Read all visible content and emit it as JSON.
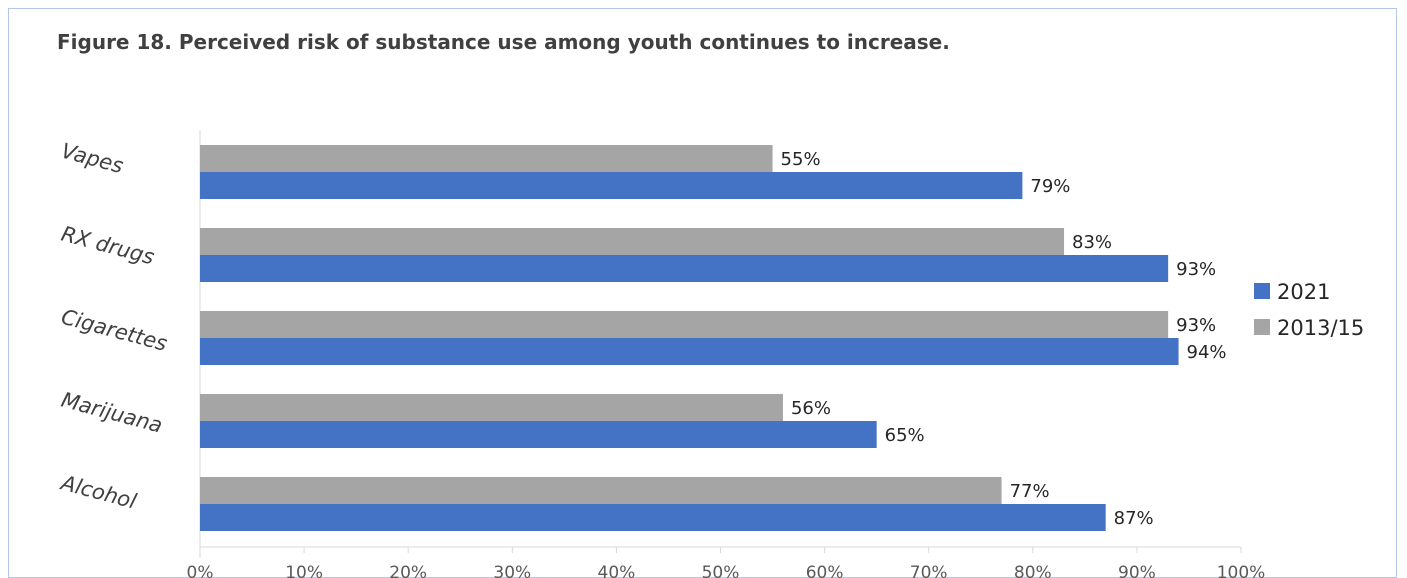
{
  "chart_data": {
    "type": "bar",
    "orientation": "horizontal",
    "title": "Figure 18. Perceived risk of substance use among youth continues to increase.",
    "categories": [
      "Vapes",
      "RX drugs",
      "Cigarettes",
      "Marijuana",
      "Alcohol"
    ],
    "series": [
      {
        "name": "2013/15",
        "values": [
          55,
          83,
          93,
          56,
          77
        ],
        "color": "#a5a5a5"
      },
      {
        "name": "2021",
        "values": [
          79,
          93,
          94,
          65,
          87
        ],
        "color": "#4472c4"
      }
    ],
    "xlim": [
      0,
      100
    ],
    "x_ticks": [
      0,
      10,
      20,
      30,
      40,
      50,
      60,
      70,
      80,
      90,
      100
    ],
    "value_format": "percent",
    "legend": {
      "position": "right",
      "order": [
        "2021",
        "2013/15"
      ]
    },
    "grid": false
  }
}
